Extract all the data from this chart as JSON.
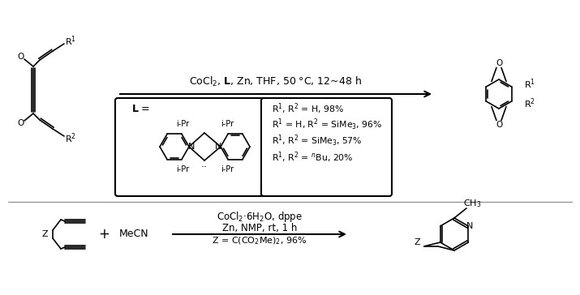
{
  "bg_color": "#ffffff",
  "fig_width": 7.15,
  "fig_height": 3.64,
  "dpi": 100,
  "reaction1_arrow_label": "CoCl$_2$, $\\mathbf{L}$, Zn, THF, 50 °C, 12~48 h",
  "reaction2_line1": "CoCl$_2$·6H$_2$O, dppe",
  "reaction2_line2": "Zn, NMP, rt, 1 h",
  "reaction2_line3": "Z = C(CO$_2$Me)$_2$, 96%",
  "L_label": "$\\mathbf{L}$ =",
  "iPr_labels": [
    "i-Pr",
    "i-Pr",
    "i-Pr",
    "i-Pr"
  ],
  "results_lines": [
    "R$^1$, R$^2$ = H, 98%",
    "R$^1$ = H, R$^2$ = SiMe$_3$, 96%",
    "R$^1$, R$^2$ = SiMe$_3$, 57%",
    "R$^1$, R$^2$ = $^n$Bu, 20%"
  ],
  "reactant1_R1": "R$^1$",
  "reactant1_R2": "R$^2$",
  "reactant1_O_top": "O",
  "reactant1_O_bot": "O",
  "product1_R1": "R$^1$",
  "product1_R2": "R$^2$",
  "product1_O_top": "O",
  "product1_O_bot": "O",
  "reactant2_Z": "Z",
  "plus_label": "+",
  "MeCN_label": "MeCN",
  "product2_Z": "Z",
  "product2_N": "N",
  "product2_CH3": "CH$_3$"
}
